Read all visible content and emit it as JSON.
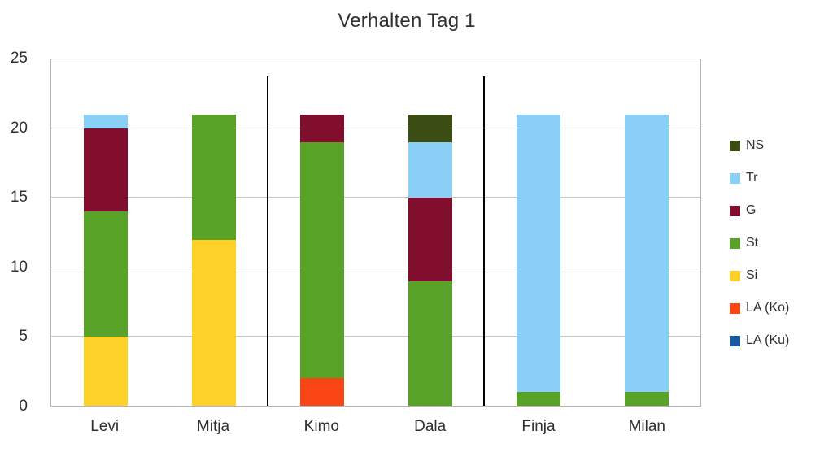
{
  "chart_data": {
    "type": "bar",
    "stacked": true,
    "title": "Verhalten Tag 1",
    "categories": [
      "Levi",
      "Mitja",
      "Kimo",
      "Dala",
      "Finja",
      "Milan"
    ],
    "series": [
      {
        "name": "LA (Ku)",
        "color": "#1B5AA0",
        "values": [
          0,
          0,
          0,
          0,
          0,
          0
        ]
      },
      {
        "name": "LA (Ko)",
        "color": "#FA4515",
        "values": [
          0,
          0,
          2,
          0,
          0,
          0
        ]
      },
      {
        "name": "Si",
        "color": "#FDD128",
        "values": [
          5,
          12,
          0,
          0,
          0,
          0
        ]
      },
      {
        "name": "St",
        "color": "#58A228",
        "values": [
          9,
          9,
          17,
          9,
          1,
          1
        ]
      },
      {
        "name": "G",
        "color": "#810E2D",
        "values": [
          6,
          0,
          2,
          6,
          0,
          0
        ]
      },
      {
        "name": "Tr",
        "color": "#8AD0F6",
        "values": [
          1,
          0,
          0,
          4,
          20,
          20
        ]
      },
      {
        "name": "NS",
        "color": "#3C4D14",
        "values": [
          0,
          0,
          0,
          2,
          0,
          0
        ]
      }
    ],
    "totals": [
      21,
      21,
      21,
      21,
      21,
      21
    ],
    "ylim": [
      0,
      25
    ],
    "yticks": [
      0,
      5,
      10,
      15,
      20,
      25
    ],
    "grid": true,
    "legend_position": "right",
    "legend_order": [
      "NS",
      "Tr",
      "G",
      "St",
      "Si",
      "LA (Ko)",
      "LA (Ku)"
    ],
    "separators_after_category_index": [
      1,
      3
    ],
    "separator_color": "#000000"
  }
}
